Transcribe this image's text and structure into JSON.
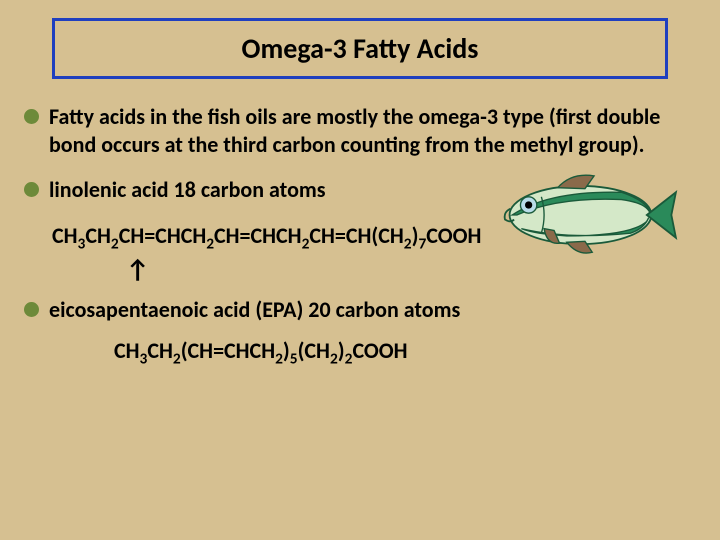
{
  "background_color": "#d6c091",
  "title": {
    "text": "Omega-3 Fatty Acids",
    "border_color": "#1f3fbf",
    "fontsize": 28
  },
  "bullets": {
    "color": "#6d8a3a",
    "size": 15,
    "fontsize": 22,
    "items": [
      {
        "text": "Fatty acids in the fish oils are mostly the omega-3 type (first double bond occurs at the third carbon counting from the methyl group)."
      },
      {
        "text": "linolenic acid   18 carbon atoms"
      },
      {
        "text": "eicosapentaenoic acid (EPA) 20 carbon atoms"
      }
    ]
  },
  "formulas": {
    "fontsize": 22,
    "linolenic_parts": [
      "CH",
      "3",
      "CH",
      "2",
      "CH=CHCH",
      "2",
      "CH=CHCH",
      "2",
      "CH=CH(CH",
      "2",
      ")",
      "7",
      "COOH"
    ],
    "epa_parts": [
      "CH",
      "3",
      "CH",
      "2",
      "(CH=CHCH",
      "2",
      ")",
      "5",
      "(CH",
      "2",
      ")",
      "2",
      "COOH"
    ],
    "arrow": "↑"
  },
  "fish": {
    "body_fill": "#d4e8c8",
    "stripe_fill": "#2a8a5a",
    "outline": "#1a5a3a",
    "eye_outer": "#b8dce8",
    "eye_pupil": "#000000",
    "fin_fill": "#8a6a4a"
  }
}
